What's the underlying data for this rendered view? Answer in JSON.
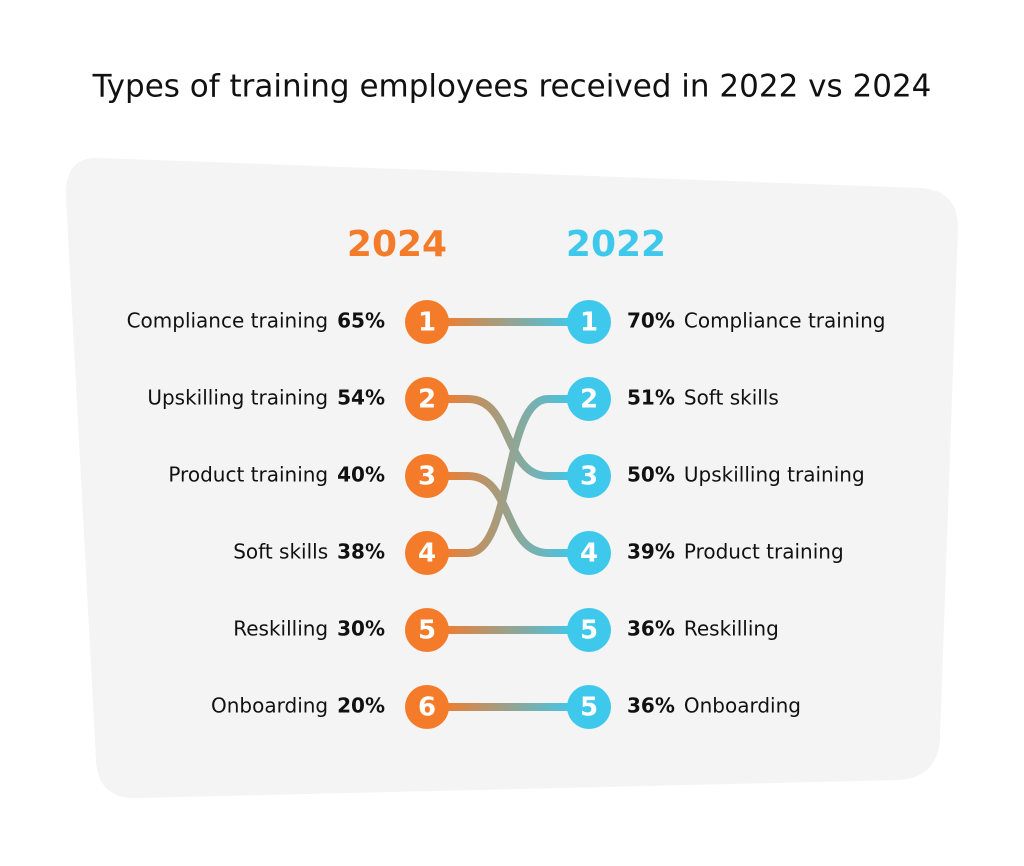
{
  "chart_data": {
    "type": "bump",
    "title": "Types of training employees received in 2022 vs 2024",
    "series": [
      {
        "name": "2024",
        "color": "#f47b2a",
        "categories": [
          "Compliance training",
          "Upskilling training",
          "Product training",
          "Soft skills",
          "Reskilling",
          "Onboarding"
        ],
        "ranks": [
          1,
          2,
          3,
          4,
          5,
          6
        ],
        "values": [
          65,
          54,
          40,
          38,
          30,
          20
        ],
        "value_labels": [
          "65%",
          "54%",
          "40%",
          "38%",
          "30%",
          "20%"
        ]
      },
      {
        "name": "2022",
        "color": "#3ec8ec",
        "categories": [
          "Compliance training",
          "Soft skills",
          "Upskilling training",
          "Product training",
          "Reskilling",
          "Onboarding"
        ],
        "ranks": [
          1,
          2,
          3,
          4,
          5,
          5
        ],
        "values": [
          70,
          51,
          50,
          39,
          36,
          36
        ],
        "value_labels": [
          "70%",
          "51%",
          "50%",
          "39%",
          "36%",
          "36%"
        ]
      }
    ]
  }
}
